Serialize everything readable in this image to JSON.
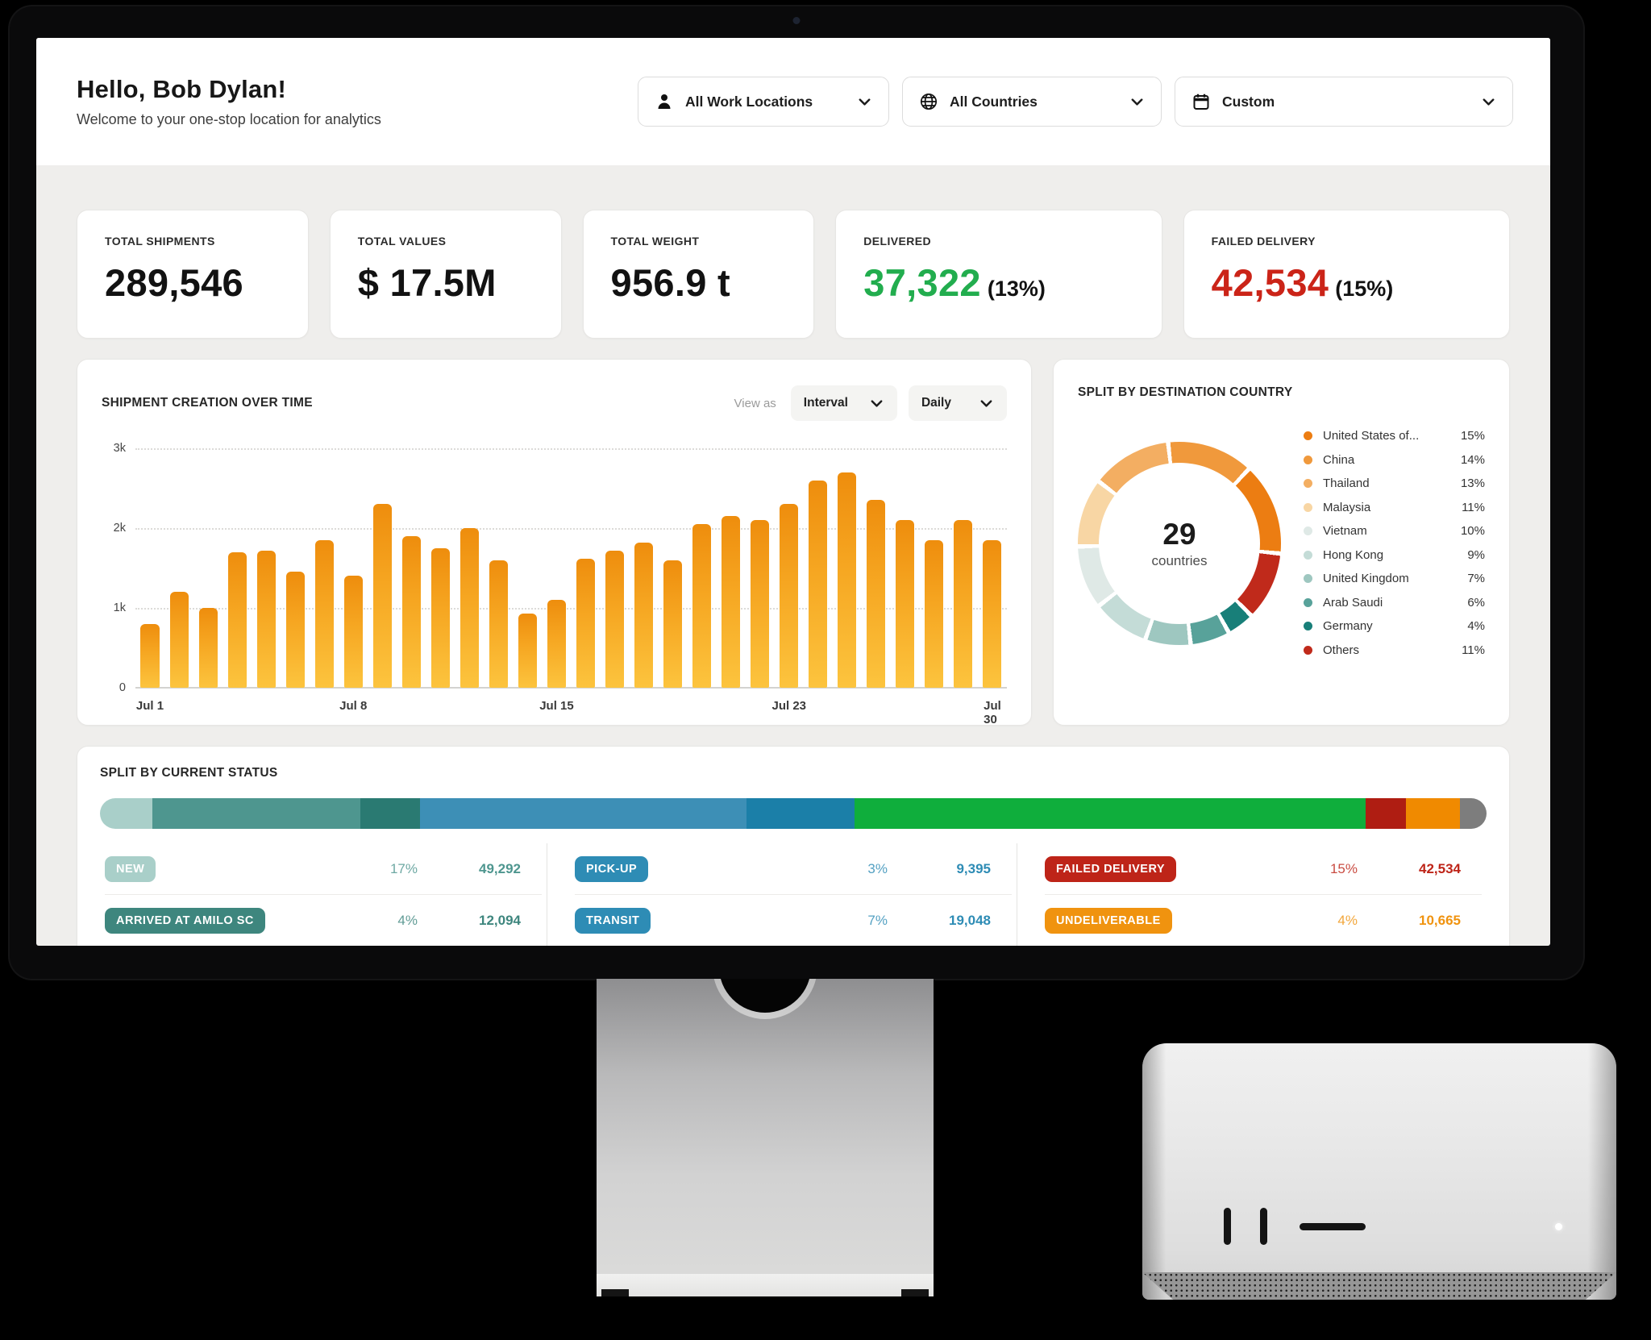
{
  "header": {
    "title": "Hello, Bob Dylan!",
    "subtitle": "Welcome to your one-stop location for analytics",
    "filters": [
      {
        "icon": "user-icon",
        "label": "All Work Locations"
      },
      {
        "icon": "globe-icon",
        "label": "All Countries"
      },
      {
        "icon": "calendar-icon",
        "label": "Custom"
      }
    ]
  },
  "stats": [
    {
      "label": "TOTAL SHIPMENTS",
      "value": "289,546",
      "suffix": "",
      "color": "#121212"
    },
    {
      "label": "TOTAL VALUES",
      "value": "$ 17.5M",
      "suffix": "",
      "color": "#121212"
    },
    {
      "label": "TOTAL WEIGHT",
      "value": "956.9 t",
      "suffix": "",
      "color": "#121212"
    },
    {
      "label": "DELIVERED",
      "value": "37,322",
      "suffix": "(13%)",
      "color": "#22ad4e"
    },
    {
      "label": "FAILED DELIVERY",
      "value": "42,534",
      "suffix": "(15%)",
      "color": "#cb2418"
    }
  ],
  "panels": {
    "shipments": {
      "title": "SHIPMENT CREATION OVER TIME",
      "view_as": "View as",
      "interval_value": "Interval",
      "frequency_value": "Daily"
    },
    "destination": {
      "title": "SPLIT BY DESTINATION COUNTRY",
      "center_value": "29",
      "center_label": "countries"
    },
    "status": {
      "title": "SPLIT BY CURRENT STATUS"
    }
  },
  "chart_data": [
    {
      "type": "bar",
      "title": "Shipment creation over time",
      "x": [
        "Jul 1",
        "Jul 2",
        "Jul 3",
        "Jul 4",
        "Jul 5",
        "Jul 6",
        "Jul 7",
        "Jul 8",
        "Jul 9",
        "Jul 10",
        "Jul 11",
        "Jul 12",
        "Jul 13",
        "Jul 14",
        "Jul 15",
        "Jul 16",
        "Jul 17",
        "Jul 18",
        "Jul 19",
        "Jul 20",
        "Jul 21",
        "Jul 22",
        "Jul 23",
        "Jul 24",
        "Jul 25",
        "Jul 26",
        "Jul 27",
        "Jul 28",
        "Jul 29",
        "Jul 30"
      ],
      "values": [
        800,
        1200,
        1000,
        1700,
        1720,
        1450,
        1850,
        1400,
        2300,
        1900,
        1750,
        2000,
        1600,
        930,
        1100,
        1620,
        1720,
        1820,
        1600,
        2050,
        2150,
        2100,
        2300,
        2600,
        2700,
        2350,
        2100,
        1850,
        2100,
        1850
      ],
      "ylim": [
        0,
        3000
      ],
      "y_ticks": [
        "0",
        "1k",
        "2k",
        "3k"
      ],
      "x_ticks": [
        {
          "index": 0,
          "label": "Jul 1"
        },
        {
          "index": 7,
          "label": "Jul 8"
        },
        {
          "index": 14,
          "label": "Jul 15"
        },
        {
          "index": 22,
          "label": "Jul 23"
        },
        {
          "index": 29,
          "label": "Jul 30"
        }
      ],
      "grid": "dotted horizontal",
      "bar_gradient": [
        "#ee8d0d",
        "#fcc43e"
      ]
    },
    {
      "type": "pie",
      "title": "Split by destination country",
      "style": "donut",
      "center_value": "29",
      "center_label": "countries",
      "labels": [
        "United States of...",
        "China",
        "Thailand",
        "Malaysia",
        "Vietnam",
        "Hong Kong",
        "United Kingdom",
        "Arab Saudi",
        "Germany",
        "Others"
      ],
      "values": [
        15,
        14,
        13,
        11,
        10,
        9,
        7,
        6,
        4,
        11
      ],
      "unit": "%",
      "colors": [
        "#ec7d12",
        "#f0993c",
        "#f3ae62",
        "#f8d6a4",
        "#dfe9e6",
        "#c4dcd7",
        "#9ec7c0",
        "#58a29a",
        "#187f79",
        "#c02a1b"
      ],
      "legend_position": "right"
    },
    {
      "type": "bar",
      "title": "Split by current status (stacked distribution)",
      "style": "stacked-horizontal",
      "segments": [
        {
          "color": "#a9cfc9",
          "percent": 3.8
        },
        {
          "color": "#4e968f",
          "percent": 15.0
        },
        {
          "color": "#2a7a72",
          "percent": 4.3
        },
        {
          "color": "#3d8fb6",
          "percent": 23.5
        },
        {
          "color": "#1b7fa8",
          "percent": 7.8
        },
        {
          "color": "#0fae3c",
          "percent": 36.9
        },
        {
          "color": "#af1d12",
          "percent": 2.9
        },
        {
          "color": "#f08a00",
          "percent": 3.9
        },
        {
          "color": "#7d7d7d",
          "percent": 1.9
        }
      ]
    }
  ],
  "status_rows": [
    [
      {
        "label": "NEW",
        "pct": "17%",
        "value": "49,292",
        "badge_color": "#a9cfc9",
        "num_color": "#4e968f"
      },
      {
        "label": "ARRIVED AT AMILO SC",
        "pct": "4%",
        "value": "12,094",
        "badge_color": "#3e867e",
        "num_color": "#3e867e"
      }
    ],
    [
      {
        "label": "PICK-UP",
        "pct": "3%",
        "value": "9,395",
        "badge_color": "#2e8cb5",
        "num_color": "#2e8cb5"
      },
      {
        "label": "TRANSIT",
        "pct": "7%",
        "value": "19,048",
        "badge_color": "#2e8cb5",
        "num_color": "#2e8cb5"
      }
    ],
    [
      {
        "label": "FAILED DELIVERY",
        "pct": "15%",
        "value": "42,534",
        "badge_color": "#be2418",
        "num_color": "#be2418"
      },
      {
        "label": "UNDELIVERABLE",
        "pct": "4%",
        "value": "10,665",
        "badge_color": "#f0930f",
        "num_color": "#f0930f"
      }
    ]
  ]
}
